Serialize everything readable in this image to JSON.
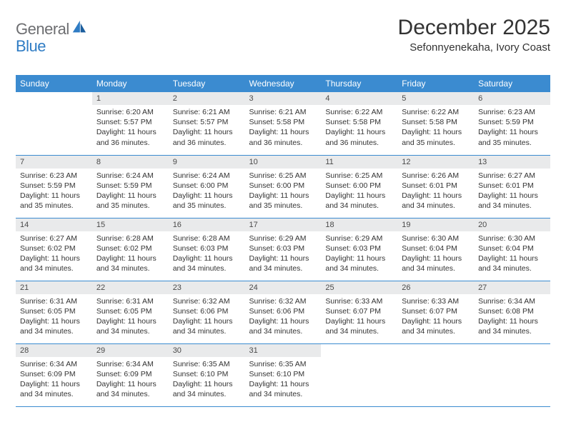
{
  "brand": {
    "text_gray": "General",
    "text_blue": "Blue",
    "text_color_gray": "#6d6e71",
    "text_color_blue": "#2f7cc4",
    "icon_fill": "#2f7cc4"
  },
  "header": {
    "title": "December 2025",
    "location": "Sefonnyenekaha, Ivory Coast"
  },
  "calendar": {
    "header_bg": "#3b8bd0",
    "header_text_color": "#ffffff",
    "daynum_bg": "#e9eaeb",
    "border_color": "#3b8bd0",
    "day_labels": [
      "Sunday",
      "Monday",
      "Tuesday",
      "Wednesday",
      "Thursday",
      "Friday",
      "Saturday"
    ],
    "weeks": [
      [
        {
          "empty": true
        },
        {
          "num": "1",
          "sunrise": "Sunrise: 6:20 AM",
          "sunset": "Sunset: 5:57 PM",
          "daylight": "Daylight: 11 hours and 36 minutes."
        },
        {
          "num": "2",
          "sunrise": "Sunrise: 6:21 AM",
          "sunset": "Sunset: 5:57 PM",
          "daylight": "Daylight: 11 hours and 36 minutes."
        },
        {
          "num": "3",
          "sunrise": "Sunrise: 6:21 AM",
          "sunset": "Sunset: 5:58 PM",
          "daylight": "Daylight: 11 hours and 36 minutes."
        },
        {
          "num": "4",
          "sunrise": "Sunrise: 6:22 AM",
          "sunset": "Sunset: 5:58 PM",
          "daylight": "Daylight: 11 hours and 36 minutes."
        },
        {
          "num": "5",
          "sunrise": "Sunrise: 6:22 AM",
          "sunset": "Sunset: 5:58 PM",
          "daylight": "Daylight: 11 hours and 35 minutes."
        },
        {
          "num": "6",
          "sunrise": "Sunrise: 6:23 AM",
          "sunset": "Sunset: 5:59 PM",
          "daylight": "Daylight: 11 hours and 35 minutes."
        }
      ],
      [
        {
          "num": "7",
          "sunrise": "Sunrise: 6:23 AM",
          "sunset": "Sunset: 5:59 PM",
          "daylight": "Daylight: 11 hours and 35 minutes."
        },
        {
          "num": "8",
          "sunrise": "Sunrise: 6:24 AM",
          "sunset": "Sunset: 5:59 PM",
          "daylight": "Daylight: 11 hours and 35 minutes."
        },
        {
          "num": "9",
          "sunrise": "Sunrise: 6:24 AM",
          "sunset": "Sunset: 6:00 PM",
          "daylight": "Daylight: 11 hours and 35 minutes."
        },
        {
          "num": "10",
          "sunrise": "Sunrise: 6:25 AM",
          "sunset": "Sunset: 6:00 PM",
          "daylight": "Daylight: 11 hours and 35 minutes."
        },
        {
          "num": "11",
          "sunrise": "Sunrise: 6:25 AM",
          "sunset": "Sunset: 6:00 PM",
          "daylight": "Daylight: 11 hours and 34 minutes."
        },
        {
          "num": "12",
          "sunrise": "Sunrise: 6:26 AM",
          "sunset": "Sunset: 6:01 PM",
          "daylight": "Daylight: 11 hours and 34 minutes."
        },
        {
          "num": "13",
          "sunrise": "Sunrise: 6:27 AM",
          "sunset": "Sunset: 6:01 PM",
          "daylight": "Daylight: 11 hours and 34 minutes."
        }
      ],
      [
        {
          "num": "14",
          "sunrise": "Sunrise: 6:27 AM",
          "sunset": "Sunset: 6:02 PM",
          "daylight": "Daylight: 11 hours and 34 minutes."
        },
        {
          "num": "15",
          "sunrise": "Sunrise: 6:28 AM",
          "sunset": "Sunset: 6:02 PM",
          "daylight": "Daylight: 11 hours and 34 minutes."
        },
        {
          "num": "16",
          "sunrise": "Sunrise: 6:28 AM",
          "sunset": "Sunset: 6:03 PM",
          "daylight": "Daylight: 11 hours and 34 minutes."
        },
        {
          "num": "17",
          "sunrise": "Sunrise: 6:29 AM",
          "sunset": "Sunset: 6:03 PM",
          "daylight": "Daylight: 11 hours and 34 minutes."
        },
        {
          "num": "18",
          "sunrise": "Sunrise: 6:29 AM",
          "sunset": "Sunset: 6:03 PM",
          "daylight": "Daylight: 11 hours and 34 minutes."
        },
        {
          "num": "19",
          "sunrise": "Sunrise: 6:30 AM",
          "sunset": "Sunset: 6:04 PM",
          "daylight": "Daylight: 11 hours and 34 minutes."
        },
        {
          "num": "20",
          "sunrise": "Sunrise: 6:30 AM",
          "sunset": "Sunset: 6:04 PM",
          "daylight": "Daylight: 11 hours and 34 minutes."
        }
      ],
      [
        {
          "num": "21",
          "sunrise": "Sunrise: 6:31 AM",
          "sunset": "Sunset: 6:05 PM",
          "daylight": "Daylight: 11 hours and 34 minutes."
        },
        {
          "num": "22",
          "sunrise": "Sunrise: 6:31 AM",
          "sunset": "Sunset: 6:05 PM",
          "daylight": "Daylight: 11 hours and 34 minutes."
        },
        {
          "num": "23",
          "sunrise": "Sunrise: 6:32 AM",
          "sunset": "Sunset: 6:06 PM",
          "daylight": "Daylight: 11 hours and 34 minutes."
        },
        {
          "num": "24",
          "sunrise": "Sunrise: 6:32 AM",
          "sunset": "Sunset: 6:06 PM",
          "daylight": "Daylight: 11 hours and 34 minutes."
        },
        {
          "num": "25",
          "sunrise": "Sunrise: 6:33 AM",
          "sunset": "Sunset: 6:07 PM",
          "daylight": "Daylight: 11 hours and 34 minutes."
        },
        {
          "num": "26",
          "sunrise": "Sunrise: 6:33 AM",
          "sunset": "Sunset: 6:07 PM",
          "daylight": "Daylight: 11 hours and 34 minutes."
        },
        {
          "num": "27",
          "sunrise": "Sunrise: 6:34 AM",
          "sunset": "Sunset: 6:08 PM",
          "daylight": "Daylight: 11 hours and 34 minutes."
        }
      ],
      [
        {
          "num": "28",
          "sunrise": "Sunrise: 6:34 AM",
          "sunset": "Sunset: 6:09 PM",
          "daylight": "Daylight: 11 hours and 34 minutes."
        },
        {
          "num": "29",
          "sunrise": "Sunrise: 6:34 AM",
          "sunset": "Sunset: 6:09 PM",
          "daylight": "Daylight: 11 hours and 34 minutes."
        },
        {
          "num": "30",
          "sunrise": "Sunrise: 6:35 AM",
          "sunset": "Sunset: 6:10 PM",
          "daylight": "Daylight: 11 hours and 34 minutes."
        },
        {
          "num": "31",
          "sunrise": "Sunrise: 6:35 AM",
          "sunset": "Sunset: 6:10 PM",
          "daylight": "Daylight: 11 hours and 34 minutes."
        },
        {
          "empty": true
        },
        {
          "empty": true
        },
        {
          "empty": true
        }
      ]
    ]
  }
}
